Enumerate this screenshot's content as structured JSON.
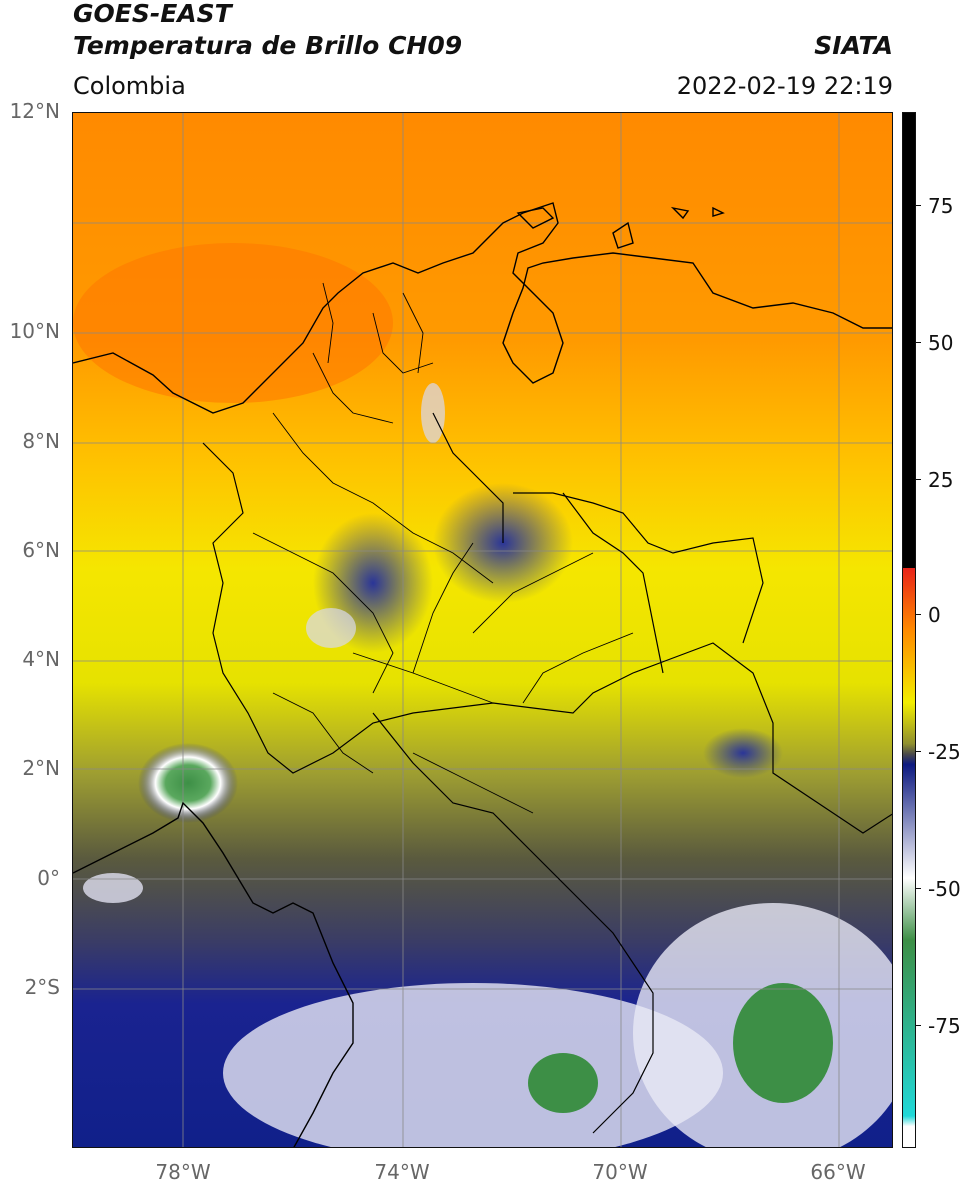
{
  "header": {
    "line1": "GOES-EAST",
    "line2": "Temperatura de Brillo CH09",
    "brand": "SIATA",
    "region": "Colombia",
    "timestamp": "2022-02-19 22:19"
  },
  "axes": {
    "lat_labels": [
      "12°N",
      "10°N",
      "8°N",
      "6°N",
      "4°N",
      "2°N",
      "0°",
      "2°S"
    ],
    "lon_labels": [
      "78°W",
      "74°W",
      "70°W",
      "66°W"
    ]
  },
  "colorbar": {
    "labels": [
      "75",
      "50",
      "25",
      "0",
      "-25",
      "-50",
      "-75"
    ],
    "colors": {
      "black": "#000000",
      "red": "#e8231a",
      "orange": "#ff8a00",
      "yellow": "#f2ee00",
      "olive": "#8f8f2e",
      "gray": "#4a4a4a",
      "navy": "#0d1a80",
      "white": "#ffffff",
      "green": "#3d8f46",
      "cyan": "#20d8d8"
    }
  }
}
